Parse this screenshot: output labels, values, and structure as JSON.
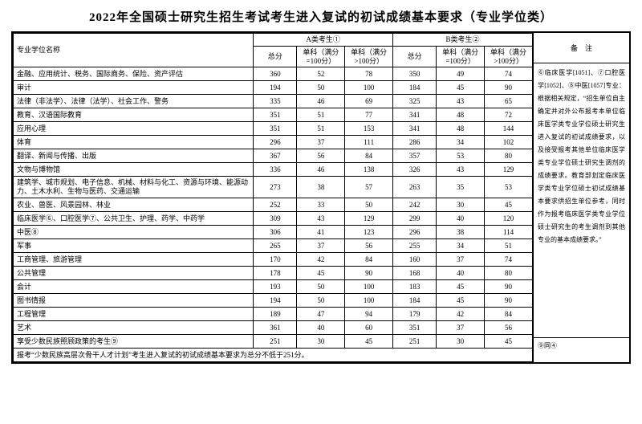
{
  "title": "2022年全国硕士研究生招生考试考生进入复试的初试成绩基本要求（专业学位类）",
  "headers": {
    "name": "专业学位名称",
    "groupA": "A类考生①",
    "groupB": "B类考生②",
    "total": "总分",
    "s100": "单科（满分=100分）",
    "sgt100": "单科（满分>100分）",
    "remark": "备　注"
  },
  "rows": [
    {
      "name": "金融、应用统计、税务、国际商务、保险、资产评估",
      "a": [
        360,
        52,
        78
      ],
      "b": [
        350,
        49,
        74
      ]
    },
    {
      "name": "审计",
      "a": [
        194,
        50,
        100
      ],
      "b": [
        184,
        45,
        90
      ]
    },
    {
      "name": "法律（非法学）、法律（法学）、社会工作、警务",
      "a": [
        335,
        46,
        69
      ],
      "b": [
        325,
        43,
        65
      ]
    },
    {
      "name": "教育、汉语国际教育",
      "a": [
        351,
        51,
        77
      ],
      "b": [
        341,
        48,
        72
      ]
    },
    {
      "name": "应用心理",
      "a": [
        351,
        51,
        153
      ],
      "b": [
        341,
        48,
        144
      ]
    },
    {
      "name": "体育",
      "a": [
        296,
        37,
        111
      ],
      "b": [
        286,
        34,
        102
      ]
    },
    {
      "name": "翻译、新闻与传播、出版",
      "a": [
        367,
        56,
        84
      ],
      "b": [
        357,
        53,
        80
      ]
    },
    {
      "name": "文物与博物馆",
      "a": [
        336,
        46,
        138
      ],
      "b": [
        326,
        43,
        129
      ]
    },
    {
      "name": "建筑学、城市规划、电子信息、机械、材料与化工、资源与环境、能源动力、土木水利、生物与医药、交通运输",
      "a": [
        273,
        38,
        57
      ],
      "b": [
        263,
        35,
        53
      ]
    },
    {
      "name": "农业、兽医、风景园林、林业",
      "a": [
        252,
        33,
        50
      ],
      "b": [
        242,
        30,
        45
      ]
    },
    {
      "name": "临床医学⑥、口腔医学⑦、公共卫生、护理、药学、中药学",
      "a": [
        309,
        43,
        129
      ],
      "b": [
        299,
        40,
        120
      ]
    },
    {
      "name": "中医⑧",
      "a": [
        306,
        41,
        123
      ],
      "b": [
        296,
        38,
        114
      ]
    },
    {
      "name": "军事",
      "a": [
        265,
        37,
        56
      ],
      "b": [
        255,
        34,
        51
      ]
    },
    {
      "name": "工商管理、旅游管理",
      "a": [
        170,
        42,
        84
      ],
      "b": [
        160,
        37,
        74
      ]
    },
    {
      "name": "公共管理",
      "a": [
        178,
        45,
        90
      ],
      "b": [
        168,
        40,
        80
      ]
    },
    {
      "name": "会计",
      "a": [
        193,
        50,
        100
      ],
      "b": [
        183,
        45,
        90
      ]
    },
    {
      "name": "图书情报",
      "a": [
        194,
        50,
        100
      ],
      "b": [
        184,
        45,
        90
      ]
    },
    {
      "name": "工程管理",
      "a": [
        189,
        47,
        94
      ],
      "b": [
        179,
        42,
        84
      ]
    },
    {
      "name": "艺术",
      "a": [
        361,
        40,
        60
      ],
      "b": [
        351,
        37,
        56
      ]
    },
    {
      "name": "享受少数民族照顾政策的考生⑨",
      "a": [
        251,
        30,
        45
      ],
      "b": [
        251,
        30,
        45
      ]
    }
  ],
  "footnote": "报考“少数民族高层次骨干人才计划”考生进入复试的初试成绩基本要求为总分不低于251分。",
  "remark_body": "⑥临床医学[1051]、⑦口腔医学[1052]、⑧中医[1057]专业：根据相关规定，“招生单位自主确定并对外公布报考本单位临床医学类专业学位硕士研究生进入复试的初试成绩要求，以及接受报考其他单位临床医学类专业学位硕士研究生调剂的成绩要求。教育部划定临床医学类专业学位硕士初试成绩基本要求供招生单位参考，同时作为报考临床医学类专业学位硕士研究生的考生调剂到其他专业的基本成绩要求。”",
  "remark_foot": "⑨同④"
}
